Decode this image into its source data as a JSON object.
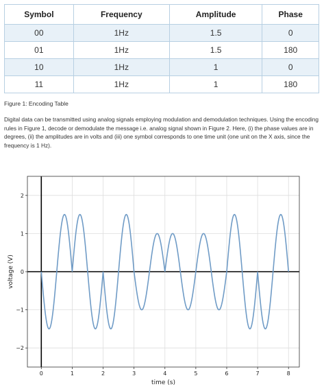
{
  "table": {
    "headers": [
      "Symbol",
      "Frequency",
      "Amplitude",
      "Phase"
    ],
    "rows": [
      [
        "00",
        "1Hz",
        "1.5",
        "0"
      ],
      [
        "01",
        "1Hz",
        "1.5",
        "180"
      ],
      [
        "10",
        "1Hz",
        "1",
        "0"
      ],
      [
        "11",
        "1Hz",
        "1",
        "180"
      ]
    ]
  },
  "caption": "Figure 1: Encoding Table",
  "paragraph": "Digital data can be transmitted using analog signals employing modulation and demodulation techniques. Using the encoding rules in Figure 1, decode or demodulate the message i.e. analog signal shown in Figure 2. Here, (i) the phase values are in degrees, (ii) the amplitudes are in volts and (iii) one symbol corresponds to one time unit (one unit on the X axis, since the frequency is 1 Hz).",
  "chart_data": {
    "type": "line",
    "xlabel": "time (s)",
    "ylabel": "voltage (V)",
    "xlim": [
      -0.45,
      8.35
    ],
    "ylim": [
      -2.5,
      2.5
    ],
    "xticks": [
      0,
      1,
      2,
      3,
      4,
      5,
      6,
      7,
      8
    ],
    "yticks": [
      -2,
      -1,
      0,
      1,
      2
    ],
    "ytick_labels": [
      "−2",
      "−1",
      "0",
      "1",
      "2"
    ],
    "grid": true,
    "frequency_hz": 1,
    "segments": [
      {
        "t0": 0,
        "t1": 1,
        "amplitude": 1.5,
        "phase_deg": 180
      },
      {
        "t0": 1,
        "t1": 2,
        "amplitude": 1.5,
        "phase_deg": 0
      },
      {
        "t0": 2,
        "t1": 3,
        "amplitude": 1.5,
        "phase_deg": 180
      },
      {
        "t0": 3,
        "t1": 4,
        "amplitude": 1,
        "phase_deg": 180
      },
      {
        "t0": 4,
        "t1": 5,
        "amplitude": 1,
        "phase_deg": 0
      },
      {
        "t0": 5,
        "t1": 6,
        "amplitude": 1,
        "phase_deg": 0
      },
      {
        "t0": 6,
        "t1": 7,
        "amplitude": 1.5,
        "phase_deg": 0
      },
      {
        "t0": 7,
        "t1": 8,
        "amplitude": 1.5,
        "phase_deg": 180
      }
    ],
    "colors": {
      "signal": "#6f9bc6",
      "axes": "#000000",
      "grid": "#dddddd"
    }
  }
}
